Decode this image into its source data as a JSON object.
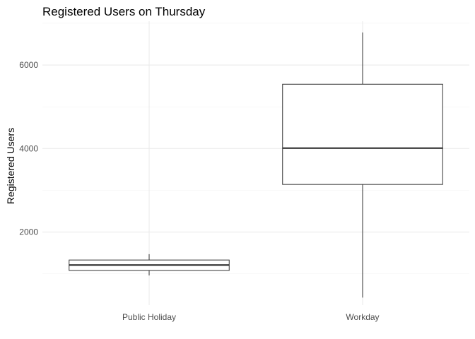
{
  "chart_data": {
    "type": "boxplot",
    "title": "Registered Users on Thursday",
    "xlabel": "",
    "ylabel": "Registered Users",
    "ylim": [
      250,
      7050
    ],
    "y_ticks": [
      2000,
      4000,
      6000
    ],
    "y_tick_labels": [
      "2000",
      "4000",
      "6000"
    ],
    "grid": true,
    "categories": [
      "Public Holiday",
      "Workday"
    ],
    "boxes": [
      {
        "category": "Public Holiday",
        "min": 960,
        "q1": 1080,
        "median": 1210,
        "q3": 1330,
        "max": 1470
      },
      {
        "category": "Workday",
        "min": 430,
        "q1": 3140,
        "median": 4010,
        "q3": 5540,
        "max": 6780
      }
    ]
  }
}
